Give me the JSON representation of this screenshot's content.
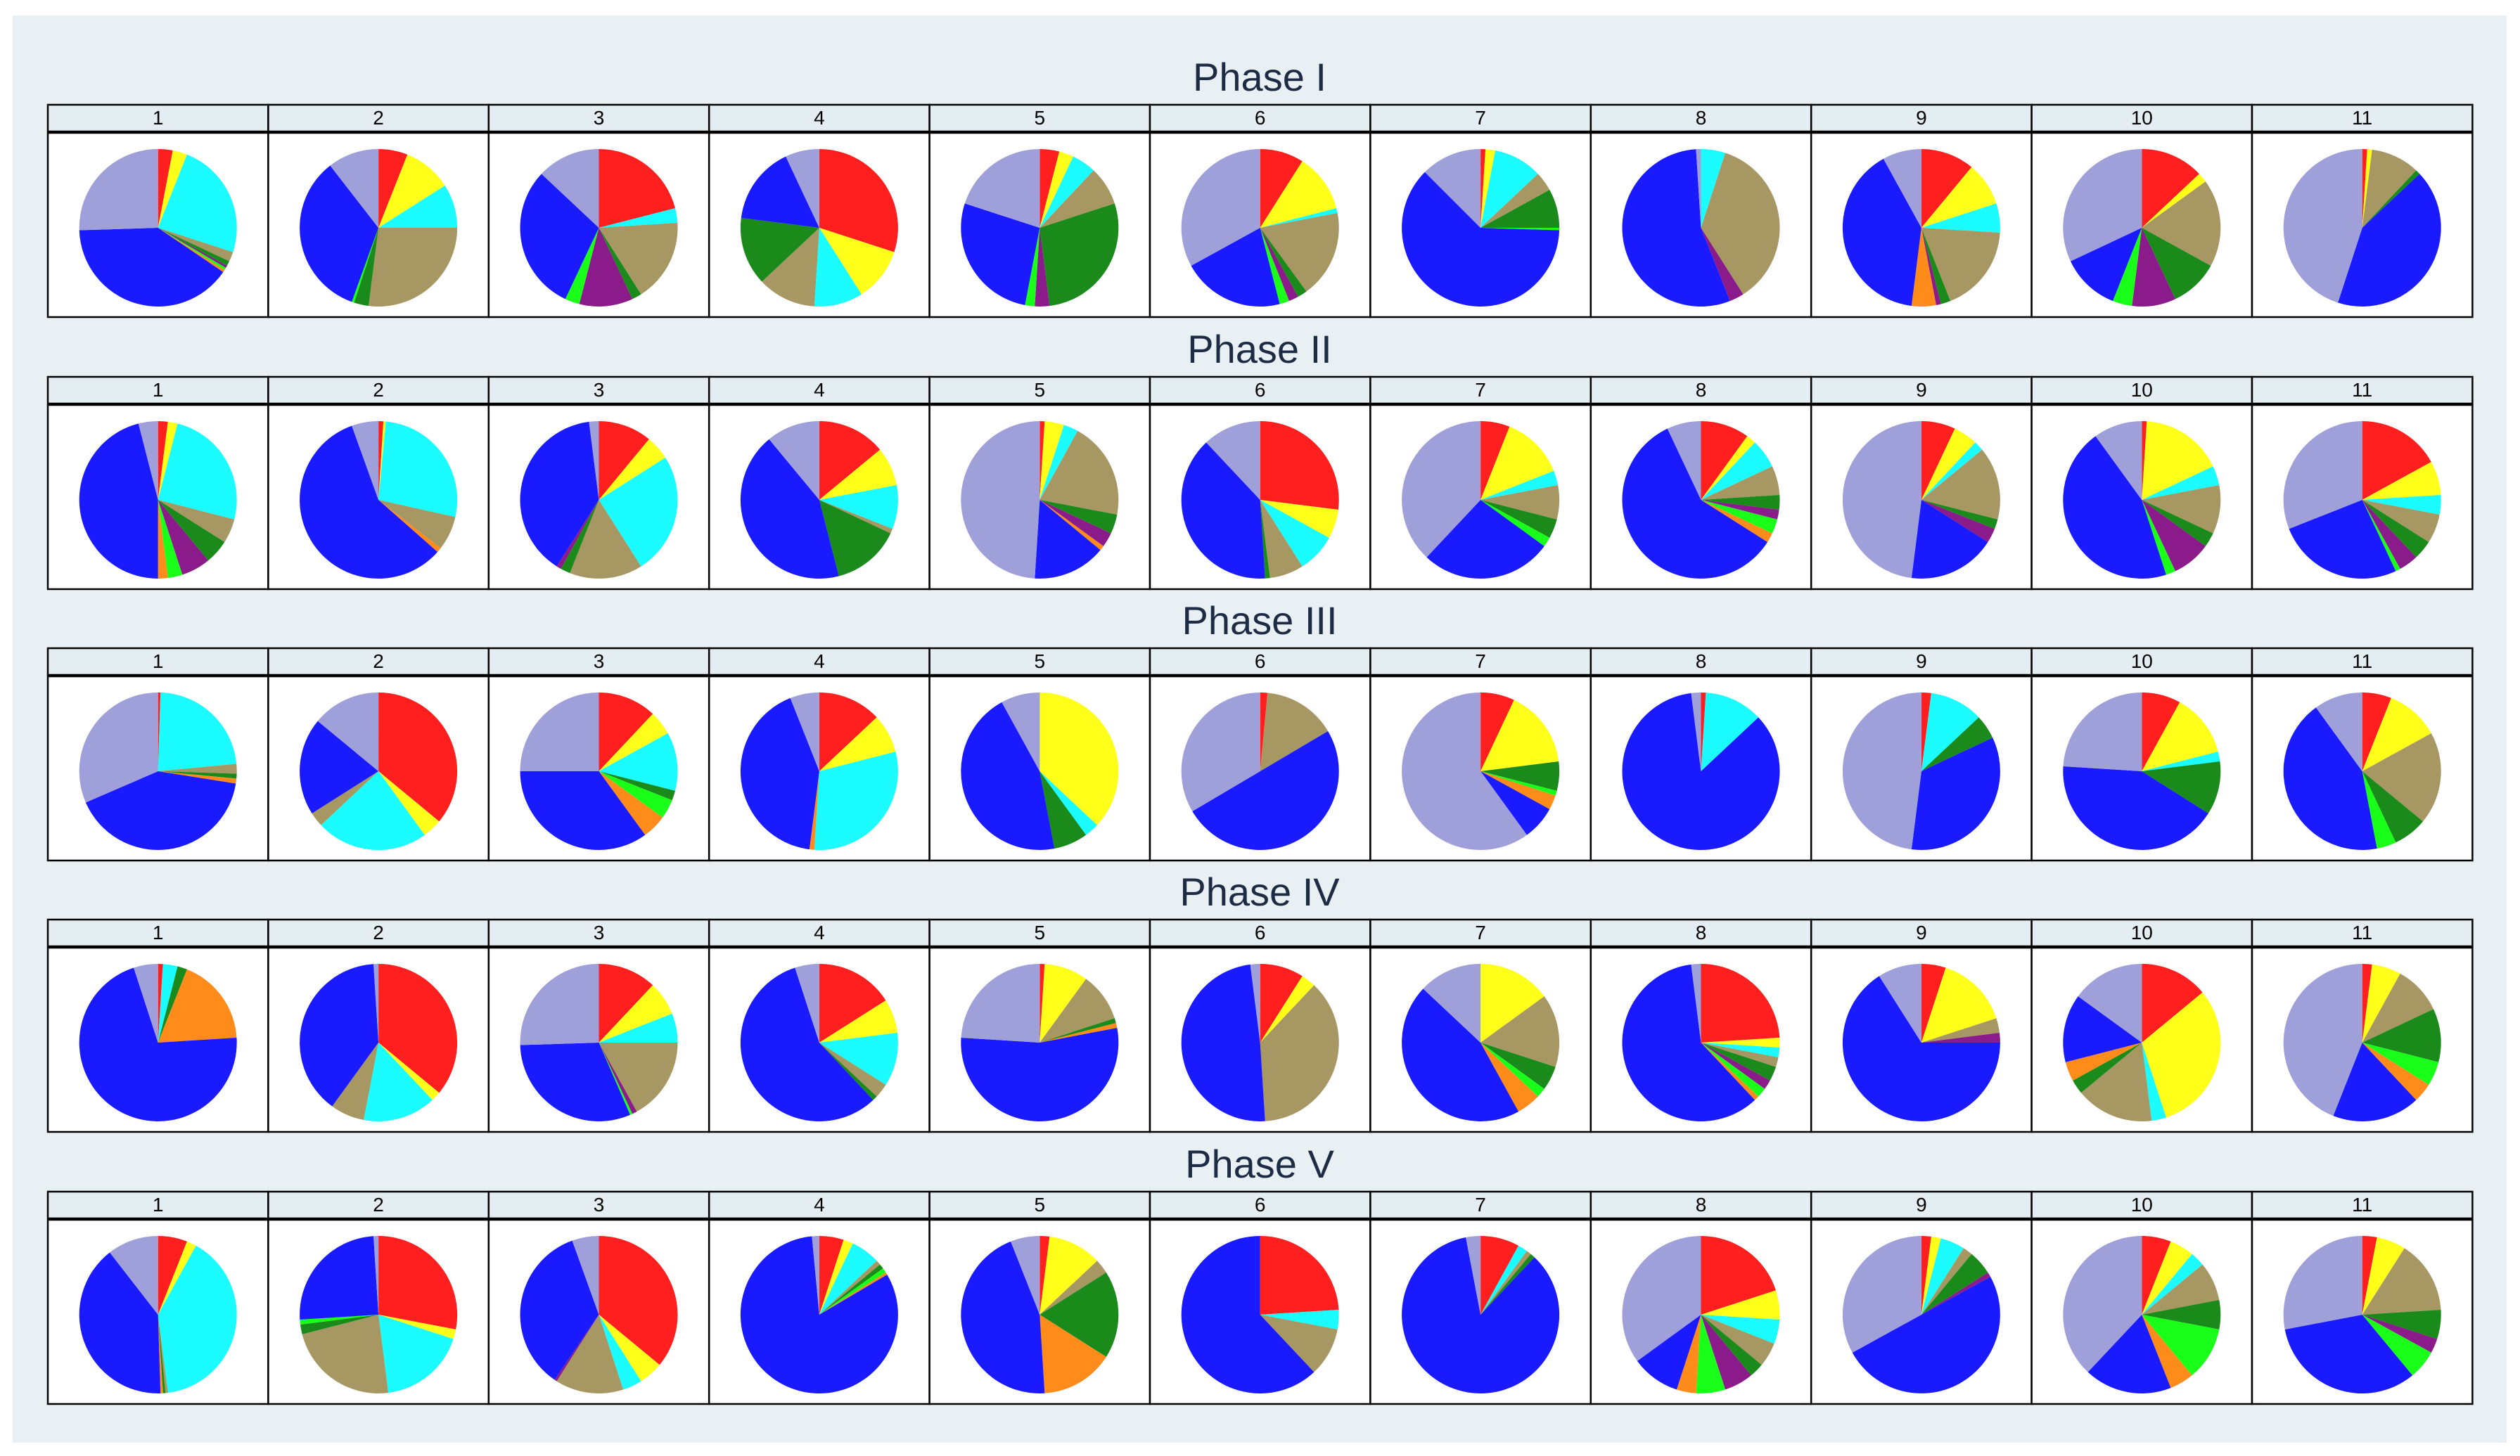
{
  "colors": {
    "Red": "#ff1f1f",
    "Yellow": "#ffff1a",
    "Cyan": "#1afcff",
    "Olive": "#a69763",
    "Green": "#1a8a1a",
    "Purple": "#8b1a8b",
    "Lime": "#1aff1a",
    "Orange": "#ff8c1a",
    "Blue": "#1a1aff",
    "Lavender": "#9f9fd9"
  },
  "chart_data": {
    "type": "pie",
    "title": "",
    "category_order": [
      "Red",
      "Yellow",
      "Cyan",
      "Olive",
      "Green",
      "Purple",
      "Lime",
      "Orange",
      "Blue",
      "Lavender"
    ],
    "panel_labels": [
      "1",
      "2",
      "3",
      "4",
      "5",
      "6",
      "7",
      "8",
      "9",
      "10",
      "11"
    ],
    "phases": [
      {
        "name": "Phase I",
        "pies": [
          [
            3,
            3,
            24,
            2,
            1,
            0.5,
            0.5,
            0.5,
            40,
            25.5
          ],
          [
            6,
            10,
            9,
            27,
            3,
            0,
            0.5,
            0,
            34,
            10.5
          ],
          [
            21,
            0,
            3,
            17,
            2,
            11,
            3,
            0,
            30,
            13
          ],
          [
            30,
            11,
            10,
            12,
            14,
            0,
            0,
            0,
            16,
            7
          ],
          [
            4,
            3,
            5,
            8,
            28,
            3,
            2,
            0,
            27,
            20
          ],
          [
            9,
            12,
            1,
            18,
            2,
            2,
            2,
            0,
            21,
            33
          ],
          [
            1,
            2,
            10,
            4,
            8,
            0,
            0.5,
            0,
            62,
            12.5
          ],
          [
            0,
            0,
            5,
            36,
            0,
            3,
            0,
            0,
            55,
            1
          ],
          [
            11,
            9,
            6,
            18,
            2,
            1,
            0,
            5,
            40,
            8
          ],
          [
            13,
            2,
            0,
            18,
            10,
            9,
            4,
            0,
            12,
            32
          ],
          [
            1,
            1,
            0,
            10,
            1,
            0,
            0,
            0,
            42,
            45
          ]
        ]
      },
      {
        "name": "Phase II",
        "pies": [
          [
            2,
            2,
            25,
            5,
            5,
            6,
            3,
            2,
            46,
            4
          ],
          [
            1,
            0.5,
            27,
            7,
            0,
            0,
            0,
            1,
            58,
            5.5
          ],
          [
            11,
            5,
            25,
            15,
            2,
            1,
            0,
            0,
            39,
            2
          ],
          [
            14,
            8,
            9,
            1,
            14,
            0,
            0,
            0,
            43,
            11
          ],
          [
            1,
            4,
            3,
            20,
            4,
            3,
            0,
            1,
            15,
            49
          ],
          [
            27,
            6,
            8,
            7,
            1,
            0,
            0,
            0,
            39,
            12
          ],
          [
            6,
            13,
            3,
            7,
            4,
            0,
            2,
            0,
            27,
            38
          ],
          [
            10,
            2,
            6,
            6,
            3,
            2,
            3,
            2,
            59,
            7
          ],
          [
            7,
            5,
            2,
            15,
            2,
            3,
            0,
            0,
            18,
            48
          ],
          [
            1,
            17,
            4,
            10,
            3,
            8,
            2,
            0,
            45,
            10
          ],
          [
            17,
            7,
            4,
            6,
            4,
            4,
            1,
            0,
            26,
            31
          ]
        ]
      },
      {
        "name": "Phase III",
        "pies": [
          [
            0.5,
            0,
            23,
            2,
            1,
            0,
            0,
            1,
            41,
            31.5
          ],
          [
            36,
            4,
            23,
            3,
            0,
            0,
            0,
            0,
            20,
            14
          ],
          [
            12,
            5,
            12,
            0,
            2,
            0,
            4,
            5,
            35,
            25
          ],
          [
            13,
            8,
            30,
            0,
            0,
            0,
            0,
            1,
            42,
            6
          ],
          [
            0,
            37,
            3,
            0,
            7,
            0,
            0,
            0,
            45,
            8
          ],
          [
            1.5,
            0,
            0,
            15,
            0,
            0,
            0,
            0,
            50,
            33.5
          ],
          [
            7,
            16,
            0,
            0,
            6,
            0,
            1,
            3,
            7,
            60
          ],
          [
            1,
            0,
            12,
            0,
            0,
            0,
            0,
            0,
            85,
            2
          ],
          [
            2,
            0,
            11,
            0,
            5,
            0,
            0,
            0,
            34,
            48
          ],
          [
            8,
            13,
            2,
            0,
            11,
            0,
            0,
            0,
            42,
            24
          ],
          [
            6,
            11,
            0,
            19,
            7,
            0,
            4,
            0,
            43,
            10
          ]
        ]
      },
      {
        "name": "Phase IV",
        "pies": [
          [
            1,
            0,
            3,
            0,
            2,
            0,
            0,
            18,
            71,
            5
          ],
          [
            36,
            2,
            15,
            7,
            0,
            0,
            0,
            0,
            39,
            1
          ],
          [
            12,
            7,
            6,
            17,
            0,
            1,
            0.5,
            0,
            31,
            25.5
          ],
          [
            16,
            7,
            11,
            3,
            1,
            0,
            0,
            0,
            57,
            5
          ],
          [
            1,
            9,
            0,
            10,
            1,
            0,
            0,
            1,
            54,
            24
          ],
          [
            9,
            3,
            0,
            37,
            0,
            0,
            0,
            0,
            49,
            2
          ],
          [
            0,
            15,
            0,
            15,
            5,
            0,
            2,
            5,
            45,
            13
          ],
          [
            24,
            2,
            2,
            2,
            3,
            2,
            2,
            1,
            60,
            2
          ],
          [
            5,
            15,
            0,
            3,
            0,
            2,
            0,
            0,
            66,
            9
          ],
          [
            14,
            31,
            3,
            16,
            3,
            0,
            0,
            4,
            14,
            15
          ],
          [
            2,
            6,
            0,
            10,
            11,
            0,
            5,
            4,
            18,
            44
          ]
        ]
      },
      {
        "name": "Phase V",
        "pies": [
          [
            6,
            2,
            40,
            0.5,
            0.5,
            0,
            0,
            0.5,
            40,
            10.5
          ],
          [
            28,
            2,
            18,
            23,
            2,
            0,
            1,
            0,
            25,
            1
          ],
          [
            36,
            5,
            4,
            14,
            0,
            0.5,
            0,
            0,
            35,
            5.5
          ],
          [
            5,
            2,
            6,
            1,
            1,
            0,
            1,
            0.5,
            82,
            1.5
          ],
          [
            2,
            11,
            0,
            3,
            18,
            0,
            0,
            15,
            45,
            6
          ],
          [
            24,
            0,
            4,
            10,
            0,
            0,
            0,
            0,
            62,
            0
          ],
          [
            8,
            0,
            2,
            1,
            1,
            0,
            0,
            0,
            85,
            3
          ],
          [
            20,
            6,
            5,
            5,
            3,
            6,
            6,
            4,
            10,
            35
          ],
          [
            2,
            2,
            5,
            2,
            5,
            1,
            0,
            0,
            50,
            33
          ],
          [
            6,
            5,
            3,
            8,
            6,
            0,
            11,
            5,
            18,
            38
          ],
          [
            3,
            6,
            0,
            15,
            6,
            3,
            6,
            0,
            33,
            28
          ]
        ]
      }
    ]
  }
}
